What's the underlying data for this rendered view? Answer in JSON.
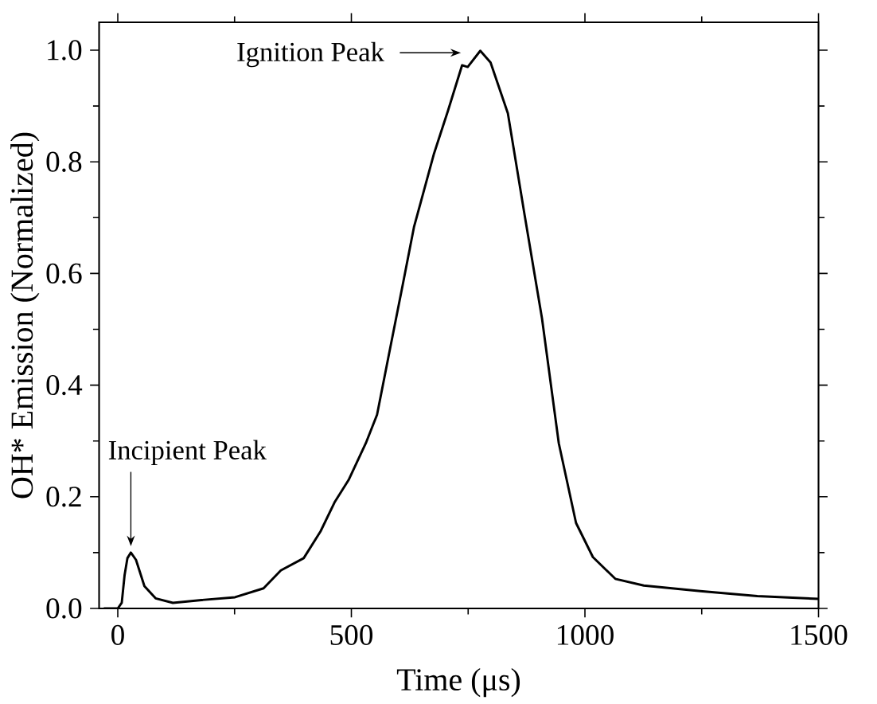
{
  "chart_data": {
    "type": "line",
    "xlabel": "Time (μs)",
    "ylabel": "OH* Emission (Normalized)",
    "xlim": [
      -40,
      1500
    ],
    "ylim": [
      0,
      1.05
    ],
    "xticks": [
      0,
      500,
      1000,
      1500
    ],
    "yticks": [
      {
        "value": 0,
        "label": "0.0"
      },
      {
        "value": 0.2,
        "label": "0.2"
      },
      {
        "value": 0.4,
        "label": "0.4"
      },
      {
        "value": 0.6,
        "label": "0.6"
      },
      {
        "value": 0.8,
        "label": "0.8"
      },
      {
        "value": 1.0,
        "label": "1.0"
      }
    ],
    "grid": false,
    "marker": "none",
    "line_style": "solid",
    "annotations": [
      {
        "text": "Incipient Peak",
        "x": 28,
        "y": 0.1
      },
      "Ignition Peak"
    ],
    "series": [
      {
        "color": "#000000",
        "x": [
          -30,
          0,
          8.5,
          14.6,
          20.6,
          28,
          39,
          57,
          81,
          118,
          179,
          251,
          312,
          349,
          398,
          434,
          464,
          494,
          531,
          555,
          579,
          610,
          634,
          677,
          707,
          737,
          749,
          776,
          798,
          835,
          871,
          908,
          944,
          981,
          1017,
          1065,
          1126,
          1247,
          1369,
          1500
        ],
        "values": [
          0,
          0,
          0.01,
          0.06,
          0.09,
          0.1,
          0.087,
          0.04,
          0.018,
          0.01,
          0.015,
          0.02,
          0.036,
          0.068,
          0.09,
          0.138,
          0.19,
          0.23,
          0.296,
          0.347,
          0.449,
          0.58,
          0.683,
          0.815,
          0.892,
          0.973,
          0.97,
          0.999,
          0.978,
          0.887,
          0.704,
          0.52,
          0.296,
          0.153,
          0.092,
          0.053,
          0.041,
          0.031,
          0.022,
          0.017
        ]
      }
    ]
  }
}
